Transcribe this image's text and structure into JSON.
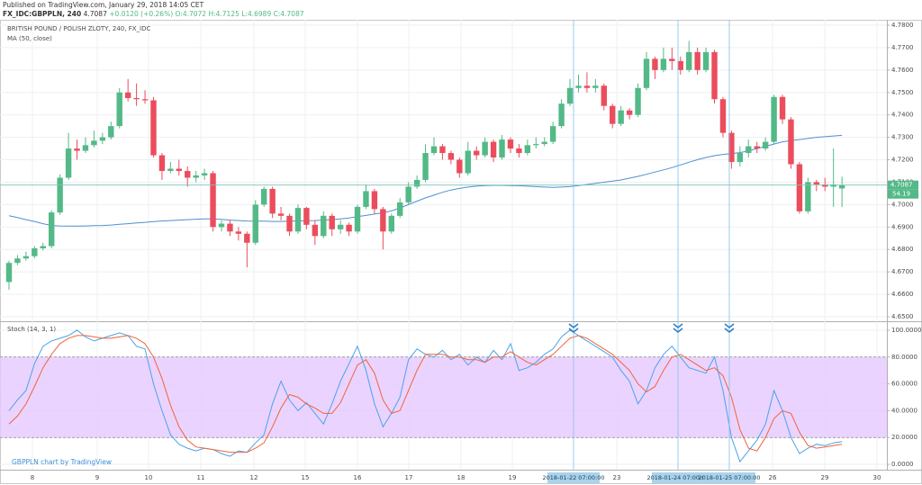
{
  "header": {
    "published": "Published on TradingView.com, January 29, 2018 14:05 CET",
    "symbol": "FX_IDC:GBPPLN, 240",
    "last": "4.7087",
    "change": "+0.0120 (+0.26%)",
    "open": "O:4.7072",
    "high": "H:4.7125",
    "low": "L:4.6989",
    "close": "C:4.7087"
  },
  "watermark": "GBPPLN chart by TradingView",
  "last_price_label": "4.7087",
  "volume_label": "54.19",
  "x_labels": [
    8,
    9,
    10,
    11,
    12,
    15,
    16,
    17,
    18,
    19,
    23,
    26,
    29,
    30
  ],
  "date_markers": [
    "2018-01-22 07:00:00",
    "2018-01-24 07:00:00",
    "2018-01-25 07:00:00"
  ],
  "chart_data": [
    {
      "type": "candlestick",
      "title": "BRITISH POUND / POLISH ZLOTY, 240, FX_IDC",
      "up_color": "#53b987",
      "down_color": "#eb4d5c",
      "open": [
        4.6655,
        4.674,
        4.676,
        4.677,
        4.6805,
        4.6815,
        4.6965,
        4.712,
        4.725,
        4.724,
        4.7265,
        4.7285,
        4.73,
        4.735,
        4.75,
        4.7475,
        4.747,
        4.7465,
        4.722,
        4.715,
        4.716,
        4.715,
        4.712,
        4.713,
        4.714,
        4.69,
        4.6915,
        4.688,
        4.687,
        4.683,
        4.7,
        4.707,
        4.696,
        4.695,
        4.688,
        4.6985,
        4.691,
        4.686,
        4.695,
        4.689,
        4.691,
        4.688,
        4.699,
        4.706,
        4.698,
        4.688,
        4.695,
        4.701,
        4.708,
        4.711,
        4.723,
        4.726,
        4.723,
        4.72,
        4.714,
        4.724,
        4.722,
        4.728,
        4.721,
        4.729,
        4.725,
        4.723,
        4.7265,
        4.727,
        4.728,
        4.735,
        4.745,
        4.752,
        4.753,
        4.752,
        4.753,
        4.744,
        4.736,
        4.742,
        4.74,
        4.752,
        4.765,
        4.76,
        4.765,
        4.764,
        4.76,
        4.768,
        4.76,
        4.768,
        4.747,
        4.732,
        4.719,
        4.723,
        4.726,
        4.725,
        4.728,
        4.748,
        4.738,
        4.718,
        4.697,
        4.71,
        4.709,
        4.708,
        4.7072
      ],
      "high": [
        4.675,
        4.6775,
        4.679,
        4.6815,
        4.683,
        4.6975,
        4.7135,
        4.732,
        4.729,
        4.73,
        4.733,
        4.732,
        4.737,
        4.752,
        4.756,
        4.754,
        4.751,
        4.748,
        4.723,
        4.719,
        4.72,
        4.717,
        4.715,
        4.716,
        4.715,
        4.693,
        4.693,
        4.69,
        4.688,
        4.702,
        4.708,
        4.708,
        4.699,
        4.696,
        4.7,
        4.699,
        4.693,
        4.697,
        4.696,
        4.693,
        4.692,
        4.7,
        4.709,
        4.707,
        4.699,
        4.696,
        4.703,
        4.71,
        4.713,
        4.727,
        4.73,
        4.727,
        4.724,
        4.721,
        4.728,
        4.726,
        4.73,
        4.729,
        4.731,
        4.73,
        4.727,
        4.729,
        4.73,
        4.73,
        4.737,
        4.747,
        4.756,
        4.758,
        4.759,
        4.756,
        4.754,
        4.745,
        4.744,
        4.743,
        4.754,
        4.768,
        4.766,
        4.77,
        4.77,
        4.766,
        4.773,
        4.77,
        4.77,
        4.769,
        4.748,
        4.733,
        4.726,
        4.729,
        4.728,
        4.73,
        4.749,
        4.749,
        4.739,
        4.719,
        4.712,
        4.711,
        4.712,
        4.725,
        4.7125
      ],
      "low": [
        4.662,
        4.673,
        4.675,
        4.676,
        4.6795,
        4.6805,
        4.6955,
        4.711,
        4.72,
        4.723,
        4.7255,
        4.727,
        4.729,
        4.734,
        4.746,
        4.744,
        4.745,
        4.721,
        4.711,
        4.714,
        4.713,
        4.708,
        4.71,
        4.711,
        4.688,
        4.688,
        4.686,
        4.684,
        4.672,
        4.682,
        4.699,
        4.694,
        4.693,
        4.686,
        4.687,
        4.689,
        4.682,
        4.685,
        4.686,
        4.687,
        4.686,
        4.687,
        4.698,
        4.696,
        4.68,
        4.687,
        4.694,
        4.7,
        4.707,
        4.71,
        4.722,
        4.72,
        4.718,
        4.712,
        4.713,
        4.72,
        4.721,
        4.719,
        4.72,
        4.723,
        4.721,
        4.722,
        4.725,
        4.726,
        4.727,
        4.734,
        4.744,
        4.75,
        4.75,
        4.75,
        4.742,
        4.734,
        4.735,
        4.738,
        4.739,
        4.751,
        4.756,
        4.759,
        4.76,
        4.758,
        4.759,
        4.758,
        4.759,
        4.745,
        4.73,
        4.716,
        4.717,
        4.721,
        4.723,
        4.724,
        4.727,
        4.736,
        4.716,
        4.696,
        4.696,
        4.706,
        4.706,
        4.699,
        4.6989
      ],
      "close": [
        4.674,
        4.676,
        4.677,
        4.6805,
        4.6815,
        4.6965,
        4.712,
        4.725,
        4.724,
        4.7265,
        4.7285,
        4.73,
        4.735,
        4.75,
        4.7475,
        4.747,
        4.7465,
        4.722,
        4.715,
        4.716,
        4.715,
        4.712,
        4.713,
        4.714,
        4.69,
        4.6915,
        4.688,
        4.687,
        4.683,
        4.7,
        4.707,
        4.696,
        4.695,
        4.688,
        4.6985,
        4.691,
        4.686,
        4.695,
        4.689,
        4.691,
        4.688,
        4.699,
        4.706,
        4.698,
        4.688,
        4.695,
        4.701,
        4.708,
        4.711,
        4.723,
        4.726,
        4.723,
        4.72,
        4.714,
        4.724,
        4.722,
        4.728,
        4.721,
        4.729,
        4.725,
        4.723,
        4.7265,
        4.727,
        4.728,
        4.735,
        4.745,
        4.752,
        4.753,
        4.752,
        4.753,
        4.744,
        4.736,
        4.742,
        4.74,
        4.752,
        4.765,
        4.76,
        4.765,
        4.764,
        4.76,
        4.768,
        4.76,
        4.768,
        4.747,
        4.732,
        4.719,
        4.723,
        4.726,
        4.725,
        4.728,
        4.748,
        4.738,
        4.718,
        4.697,
        4.71,
        4.709,
        4.708,
        4.709,
        4.7087
      ],
      "series": [
        {
          "name": "MA (50, close)",
          "color": "#4f8fd0",
          "values": [
            4.695,
            4.6942,
            4.6933,
            4.6925,
            4.6915,
            4.6907,
            4.6905,
            4.6904,
            4.6904,
            4.6905,
            4.6906,
            4.6907,
            4.6909,
            4.6912,
            4.6915,
            4.6918,
            4.6921,
            4.6924,
            4.6927,
            4.6929,
            4.6931,
            4.6933,
            4.6935,
            4.6936,
            4.6936,
            4.6934,
            4.6931,
            4.6929,
            4.6927,
            4.6926,
            4.6926,
            4.6925,
            4.6925,
            4.6926,
            4.6927,
            4.6928,
            4.6929,
            4.6931,
            4.6933,
            4.6936,
            4.694,
            4.6946,
            4.6952,
            4.6958,
            4.6964,
            4.6972,
            4.6985,
            4.7,
            4.7015,
            4.703,
            4.7042,
            4.7055,
            4.7065,
            4.7072,
            4.7078,
            4.7082,
            4.7085,
            4.7086,
            4.7086,
            4.7085,
            4.7084,
            4.7082,
            4.708,
            4.7078,
            4.7077,
            4.7078,
            4.708,
            4.7085,
            4.709,
            4.7095,
            4.71,
            4.7105,
            4.711,
            4.7118,
            4.7126,
            4.7135,
            4.7145,
            4.7155,
            4.7165,
            4.7177,
            4.7189,
            4.72,
            4.721,
            4.7218,
            4.7224,
            4.7228,
            4.7232,
            4.724,
            4.725,
            4.726,
            4.727,
            4.728,
            4.7285,
            4.729,
            4.7295,
            4.73,
            4.7303,
            4.7306,
            4.7309
          ]
        }
      ],
      "ylim": [
        4.648,
        4.7824
      ],
      "yticks": [
        {
          "value": 4.65,
          "label": "4.6500"
        },
        {
          "value": 4.66,
          "label": "4.6600"
        },
        {
          "value": 4.67,
          "label": "4.6700"
        },
        {
          "value": 4.68,
          "label": "4.6800"
        },
        {
          "value": 4.69,
          "label": "4.6900"
        },
        {
          "value": 4.7,
          "label": "4.7000"
        },
        {
          "value": 4.71,
          "label": "4.7100"
        },
        {
          "value": 4.72,
          "label": "4.7200"
        },
        {
          "value": 4.73,
          "label": "4.7300"
        },
        {
          "value": 4.74,
          "label": "4.7400"
        },
        {
          "value": 4.75,
          "label": "4.7500"
        },
        {
          "value": 4.76,
          "label": "4.7600"
        },
        {
          "value": 4.77,
          "label": "4.7700"
        },
        {
          "value": 4.78,
          "label": "4.7800"
        }
      ],
      "grid": true
    },
    {
      "type": "line",
      "title": "Stoch (14, 3, 1)",
      "series": [
        {
          "color": "#4aa3e8",
          "values": [
            40,
            48,
            55,
            75,
            88,
            92,
            94,
            96,
            100,
            95,
            92,
            94,
            96,
            98,
            96,
            88,
            86,
            60,
            40,
            22,
            15,
            12,
            10,
            12,
            11,
            8,
            6,
            10,
            9,
            16,
            22,
            45,
            62,
            48,
            40,
            46,
            38,
            30,
            45,
            62,
            75,
            88,
            70,
            45,
            28,
            38,
            50,
            78,
            86,
            82,
            80,
            85,
            78,
            82,
            74,
            80,
            76,
            85,
            78,
            90,
            70,
            72,
            76,
            82,
            86,
            95,
            100,
            96,
            92,
            88,
            84,
            80,
            70,
            62,
            45,
            55,
            72,
            82,
            88,
            80,
            72,
            70,
            68,
            80,
            55,
            20,
            2,
            10,
            18,
            30,
            55,
            40,
            20,
            8,
            12,
            15,
            14,
            16,
            17
          ]
        },
        {
          "color": "#f0643c",
          "values": [
            30,
            36,
            45,
            58,
            72,
            82,
            90,
            94,
            96,
            96,
            95,
            94,
            94,
            95,
            96,
            94,
            90,
            80,
            64,
            44,
            28,
            18,
            13,
            12,
            11,
            10,
            9,
            9,
            9,
            12,
            16,
            28,
            42,
            52,
            50,
            45,
            42,
            38,
            38,
            46,
            60,
            74,
            78,
            68,
            48,
            38,
            40,
            55,
            70,
            82,
            82,
            82,
            80,
            80,
            78,
            78,
            76,
            80,
            80,
            84,
            80,
            76,
            74,
            78,
            82,
            88,
            94,
            96,
            94,
            90,
            86,
            82,
            76,
            70,
            60,
            54,
            58,
            70,
            80,
            82,
            78,
            74,
            70,
            72,
            66,
            50,
            26,
            12,
            10,
            20,
            34,
            40,
            38,
            24,
            14,
            12,
            13,
            14,
            15
          ]
        }
      ],
      "bands": [
        20,
        80
      ],
      "band_color": "#e6c8ff",
      "ylim": [
        -4,
        106
      ],
      "yticks": [
        {
          "value": 0,
          "label": "0.0000"
        },
        {
          "value": 20,
          "label": "20.0000"
        },
        {
          "value": 40,
          "label": "40.0000"
        },
        {
          "value": 60,
          "label": "60.0000"
        },
        {
          "value": 80,
          "label": "80.0000"
        },
        {
          "value": 100,
          "label": "100.0000"
        }
      ],
      "grid": true
    }
  ]
}
